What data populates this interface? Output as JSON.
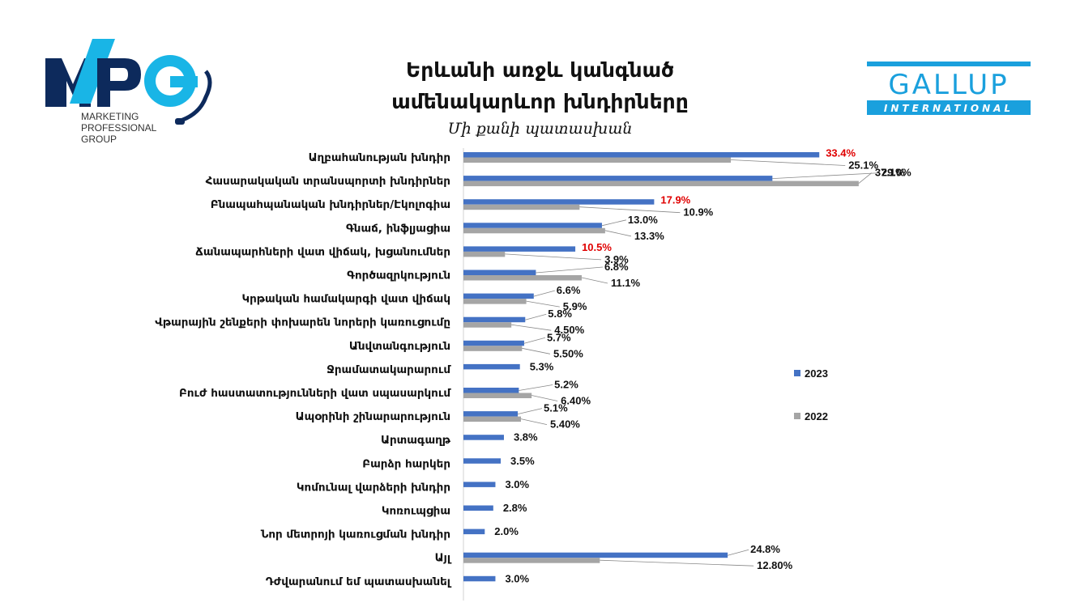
{
  "header": {
    "title_line1": "Երևանի առջև կանգնած",
    "title_line2": "ամենակարևոր խնդիրները",
    "subtitle": "Մի քանի պատասխան"
  },
  "logos": {
    "left": {
      "letters": "MPG",
      "line1": "MARKETING",
      "line2": "PROFESSIONAL",
      "line3": "GROUP"
    },
    "right": {
      "word1": "GALLUP",
      "word2": "INTERNATIONAL"
    }
  },
  "colors": {
    "series_2023": "#4472C4",
    "series_2022": "#A5A5A5",
    "highlight_label": "#E00000",
    "label": "#111111",
    "mpg_navy": "#0D2A5C",
    "mpg_cyan": "#19B5E6",
    "gallup_blue": "#1AA0DD"
  },
  "chart_data": {
    "type": "bar",
    "orientation": "horizontal",
    "categories": [
      "Աղբահանության խնդիր",
      "Հասարակական տրանսպորտի խնդիրներ",
      "Բնապահպանական խնդիրներ/Էկոլոգիա",
      "Գնաճ, ինֆլյացիա",
      "Ճանապարհների վատ վիճակ, խցանումներ",
      "Գործազրկություն",
      "Կրթական համակարգի վատ վիճակ",
      "Վթարային շենքերի փոխարեն նորերի  կառուցումը",
      "Անվտանգություն",
      "Ջրամատակարարում",
      "Բուժ հաստատությունների վատ սպասարկում",
      "Ապօրինի շինարարություն",
      "Արտագաղթ",
      "Բարձր հարկեր",
      "Կոմունալ վարձերի խնդիր",
      "Կոռուպցիա",
      "Նոր մետրոյի կառուցման խնդիր",
      "Այլ",
      "Դժվարանում եմ պատասխանել"
    ],
    "series": [
      {
        "name": "2023",
        "values": [
          33.4,
          29.0,
          17.9,
          13.0,
          10.5,
          6.8,
          6.6,
          5.8,
          5.7,
          5.3,
          5.2,
          5.1,
          3.8,
          3.5,
          3.0,
          2.8,
          2.0,
          24.8,
          3.0
        ],
        "labels": [
          "33.4%",
          "29.0%",
          "17.9%",
          "13.0%",
          "10.5%",
          "6.8%",
          "6.6%",
          "5.8%",
          "5.7%",
          "5.3%",
          "5.2%",
          "5.1%",
          "3.8%",
          "3.5%",
          "3.0%",
          "2.8%",
          "2.0%",
          "24.8%",
          "3.0%"
        ],
        "highlighted": [
          true,
          false,
          true,
          false,
          true,
          false,
          false,
          false,
          false,
          false,
          false,
          false,
          false,
          false,
          false,
          false,
          false,
          false,
          false
        ]
      },
      {
        "name": "2022",
        "values": [
          25.1,
          37.1,
          10.9,
          13.3,
          3.9,
          11.1,
          5.9,
          4.5,
          5.5,
          null,
          6.4,
          5.4,
          null,
          null,
          null,
          null,
          null,
          12.8,
          null
        ],
        "labels": [
          "25.1%",
          "37.1%",
          "10.9%",
          "13.3%",
          "3.9%",
          "11.1%",
          "5.9%",
          "4.50%",
          "5.50%",
          "",
          "6.40%",
          "5.40%",
          "",
          "",
          "",
          "",
          "",
          "12.80%",
          ""
        ]
      }
    ],
    "xlim": [
      0,
      40
    ],
    "legend": {
      "position": "right",
      "entries": [
        "2023",
        "2022"
      ]
    }
  }
}
